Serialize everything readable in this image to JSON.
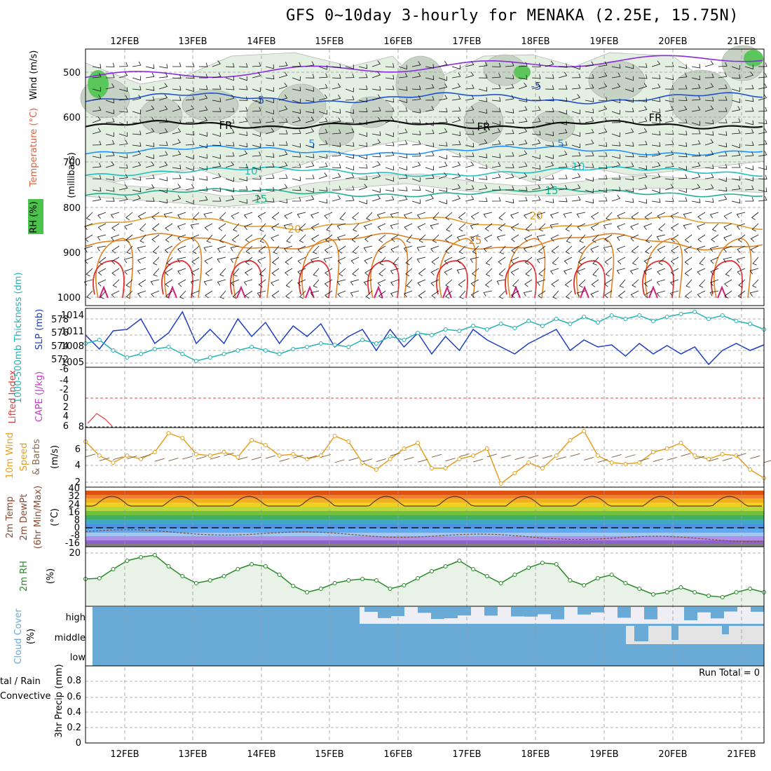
{
  "title": "GFS 0~10day 3-hourly for MENAKA (2.25E, 15.75N)",
  "dates": [
    "12FEB",
    "13FEB",
    "14FEB",
    "15FEB",
    "16FEB",
    "17FEB",
    "18FEB",
    "19FEB",
    "20FEB",
    "21FEB"
  ],
  "colors": {
    "frame": "#000000",
    "grid": "#999999",
    "wind": "#000000",
    "rh": "#2f9e2f",
    "slp": "#1f3fbf",
    "thickness": "#26b3b3",
    "lifted": "#e03c3c",
    "cape": "#c040c0",
    "speed": "#e6a020",
    "barbs": "#7a5a3a",
    "cloud": "#6aaad6",
    "rh2m": "#2a8a2a"
  },
  "panels": {
    "upper": {
      "ylabel_main": "(millibars)",
      "ylabel_wind": "Wind (m/s)",
      "ylabel_temp": "Temperature (°C)",
      "ylabel_rh": "RH (%)",
      "yticks": [
        "500",
        "600",
        "700",
        "800",
        "900",
        "1000"
      ]
    },
    "slp": {
      "ylabel_thick": "1000-500mb Thickness (dm)",
      "ylabel_slp": "SLP (mb)",
      "yticks_thick": [
        "578",
        "576",
        "574",
        "572"
      ],
      "yticks_slp": [
        "1014",
        "1011",
        "1008",
        "1005"
      ]
    },
    "cape": {
      "ylabel_li": "Lifted Index",
      "ylabel_cape": "CAPE (J/kg)",
      "yticks": [
        "-6",
        "-4",
        "-2",
        "0",
        "2",
        "4",
        "6"
      ],
      "ytick_cape": "8"
    },
    "wind10": {
      "ylabel_a": "10m Wind",
      "ylabel_b": "Speed",
      "ylabel_c": "& Barbs",
      "ylabel_unit": "(m/s)",
      "yticks": [
        "6",
        "4",
        "2"
      ]
    },
    "temp2m": {
      "ylabel_a": "2m Temp",
      "ylabel_b": "2m DewPt",
      "ylabel_c": "(6hr Min/Max)",
      "ylabel_unit": "(°C)",
      "yticks": [
        "40",
        "32",
        "24",
        "16",
        "8",
        "0",
        "-8",
        "-16"
      ]
    },
    "rh2m": {
      "ylabel": "2m RH",
      "ylabel_unit": "(%)",
      "yticks": [
        "20"
      ]
    },
    "cloud": {
      "ylabel": "Cloud Cover",
      "ylabel_unit": "(%)",
      "levels": [
        "high",
        "middle",
        "low"
      ]
    },
    "precip": {
      "ylabel_a": "tal / Rain",
      "ylabel_b": "Convective",
      "ylabel_c": "3hr Precip (mm)",
      "yticks": [
        "0.8",
        "0.6",
        "0.4",
        "0.2",
        "0"
      ],
      "run_total": "Run Total = 0"
    }
  },
  "chart_data": [
    {
      "type": "line",
      "name": "SLP",
      "x": [
        "12FEB",
        "13FEB",
        "14FEB",
        "15FEB",
        "16FEB",
        "17FEB",
        "18FEB",
        "19FEB",
        "20FEB",
        "21FEB"
      ],
      "series": [
        {
          "name": "SLP (mb)",
          "values": [
            1009,
            1013,
            1012,
            1013,
            1011,
            1012,
            1011,
            1010,
            1009,
            1008
          ]
        },
        {
          "name": "1000-500mb Thickness (dm)",
          "values": [
            573,
            574,
            573,
            575,
            576,
            576,
            577,
            578,
            578,
            578
          ]
        }
      ]
    },
    {
      "type": "line",
      "name": "2m RH",
      "x": [
        "12FEB",
        "13FEB",
        "14FEB",
        "15FEB",
        "16FEB",
        "17FEB",
        "18FEB",
        "19FEB",
        "20FEB",
        "21FEB"
      ],
      "series": [
        {
          "name": "2m RH (%)",
          "values": [
            19,
            15,
            12,
            14,
            15,
            16,
            12,
            11,
            9,
            8
          ]
        }
      ]
    },
    {
      "type": "line",
      "name": "10m Wind Speed",
      "x": [
        "12FEB",
        "13FEB",
        "14FEB",
        "15FEB",
        "16FEB",
        "17FEB",
        "18FEB",
        "19FEB",
        "20FEB",
        "21FEB"
      ],
      "series": [
        {
          "name": "10m Wind Speed (m/s)",
          "values": [
            5,
            6,
            5,
            6,
            5,
            5,
            6,
            5,
            5,
            4
          ]
        }
      ]
    }
  ]
}
